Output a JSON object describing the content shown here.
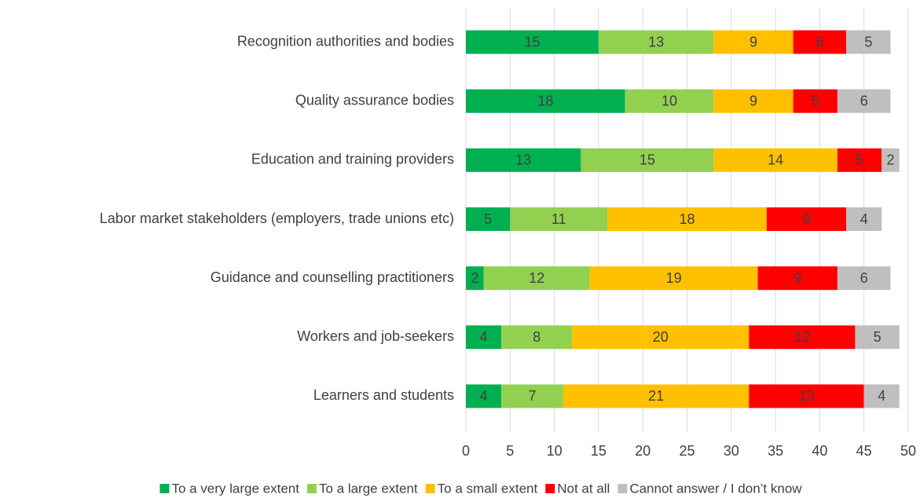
{
  "chart_data": {
    "type": "stacked-barh",
    "categories": [
      "Recognition authorities and bodies",
      "Quality assurance bodies",
      "Education and training providers",
      "Labor market stakeholders (employers, trade unions etc)",
      "Guidance and counselling practitioners",
      "Workers and job-seekers",
      "Learners and students"
    ],
    "series": [
      {
        "name": "To a very large extent",
        "color": "#00b050",
        "values": [
          15,
          18,
          13,
          5,
          2,
          4,
          4
        ]
      },
      {
        "name": "To a large extent",
        "color": "#92d050",
        "values": [
          13,
          10,
          15,
          11,
          12,
          8,
          7
        ]
      },
      {
        "name": "To a small extent",
        "color": "#ffc000",
        "values": [
          9,
          9,
          14,
          18,
          19,
          20,
          21
        ]
      },
      {
        "name": "Not at all",
        "color": "#ff0000",
        "values": [
          6,
          5,
          5,
          9,
          9,
          12,
          13
        ]
      },
      {
        "name": "Cannot answer / I don’t know",
        "color": "#bfbfbf",
        "values": [
          5,
          6,
          2,
          4,
          6,
          5,
          4
        ]
      }
    ],
    "xlim": [
      0,
      50
    ],
    "xticks": [
      0,
      5,
      10,
      15,
      20,
      25,
      30,
      35,
      40,
      45,
      50
    ],
    "grid": true,
    "legend": "bottom"
  }
}
